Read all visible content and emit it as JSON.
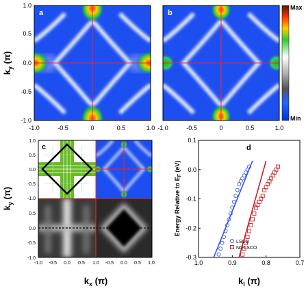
{
  "figure": {
    "panels": {
      "a": "a",
      "b": "b",
      "c": "c",
      "d": "d"
    },
    "colorbar": {
      "max_label": "Max",
      "min_label": "Min"
    },
    "axes_top": {
      "ylabel_main": "k",
      "ylabel_sub": "y",
      "ylabel_unit": " (π)",
      "yticks": [
        "1.0",
        "0.5",
        "0.0",
        "-0.5",
        "-1.0"
      ],
      "xticks": [
        "-1.0",
        "-0.5",
        "0",
        "0.5",
        "1.0"
      ]
    },
    "axes_c": {
      "yticks": [
        "1.0",
        "0.5",
        "0.0",
        "-0.5",
        "-1.0"
      ],
      "yticks_bottom": [
        "0.5",
        "0.0",
        "-0.5",
        "-1.0"
      ],
      "xticks": [
        "-1.0",
        "-0.5",
        "0.0",
        "0.5",
        "1.0"
      ],
      "xticks_right": [
        "-0.5",
        "0.0",
        "0.5",
        "1.0"
      ],
      "xlabel_main": "k",
      "xlabel_sub": "x",
      "xlabel_unit": " (π)"
    },
    "axes_d": {
      "ylabel": "Energy Relative to E",
      "ylabel_sub": "F",
      "ylabel_unit": " (eV)",
      "yticks": [
        "0.1",
        "0.0",
        "-0.1",
        "-0.2",
        "-0.3"
      ],
      "xticks": [
        "1.0",
        "0.9",
        "0.8",
        "0.7"
      ],
      "xlabel_main": "k",
      "xlabel_sub": "l",
      "xlabel_unit": " (π)"
    },
    "legend": [
      {
        "label": "LSCO",
        "color": "#3355ee",
        "marker": "circle"
      },
      {
        "label": "Nd-LSCO",
        "color": "#cc2222",
        "marker": "square"
      }
    ]
  },
  "chart_data": {
    "type": "scatter",
    "title": "",
    "xlabel": "kl (π)",
    "ylabel": "Energy Relative to EF (eV)",
    "xlim": [
      1.0,
      0.7
    ],
    "ylim": [
      -0.3,
      0.1
    ],
    "series": [
      {
        "name": "LSCO",
        "x": [
          0.94,
          0.935,
          0.93,
          0.925,
          0.92,
          0.915,
          0.91,
          0.905,
          0.9,
          0.895,
          0.89,
          0.885,
          0.88,
          0.875,
          0.87,
          0.865,
          0.86,
          0.855,
          0.85
        ],
        "y": [
          -0.29,
          -0.27,
          -0.25,
          -0.23,
          -0.21,
          -0.19,
          -0.17,
          -0.15,
          -0.13,
          -0.11,
          -0.09,
          -0.07,
          -0.05,
          -0.04,
          -0.03,
          -0.02,
          -0.01,
          0.0,
          0.01
        ]
      },
      {
        "name": "Nd-LSCO",
        "x": [
          0.87,
          0.865,
          0.86,
          0.855,
          0.85,
          0.845,
          0.84,
          0.835,
          0.83,
          0.825,
          0.82,
          0.815,
          0.81,
          0.805,
          0.8,
          0.795,
          0.79,
          0.785,
          0.78,
          0.775,
          0.77,
          0.765
        ],
        "y": [
          -0.29,
          -0.27,
          -0.25,
          -0.23,
          -0.21,
          -0.19,
          -0.17,
          -0.15,
          -0.13,
          -0.12,
          -0.11,
          -0.1,
          -0.09,
          -0.07,
          -0.06,
          -0.05,
          -0.04,
          -0.03,
          -0.02,
          -0.01,
          0.0,
          0.01
        ]
      }
    ],
    "fits": [
      {
        "x": [
          0.955,
          0.84
        ],
        "y": [
          -0.3,
          0.03
        ],
        "color": "#3355ee"
      },
      {
        "x": [
          0.88,
          0.8
        ],
        "y": [
          -0.3,
          0.03
        ],
        "color": "#cc2222"
      }
    ]
  }
}
